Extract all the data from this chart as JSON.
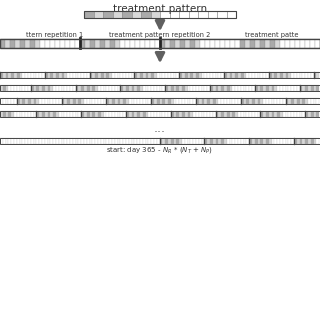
{
  "title": "treatment pattern",
  "background_color": "#ffffff",
  "arrow_color": "#606060",
  "dark": "#aaaaaa",
  "light": "#d8d8d8",
  "white": "#ffffff",
  "edge_color": "#888888",
  "border_color": "#444444",
  "sep_color": "#222222",
  "text_color": "#333333",
  "dots": "...",
  "bottom_label": "start: day 365 - $N_R$ * ($N_T$ + $N_P$)",
  "rep_label1": "ttern repetition 1",
  "rep_label2": "treatment pattern repetition 2",
  "rep_label3": "treatment patte",
  "fig_width": 3.2,
  "fig_height": 3.2,
  "dpi": 100
}
